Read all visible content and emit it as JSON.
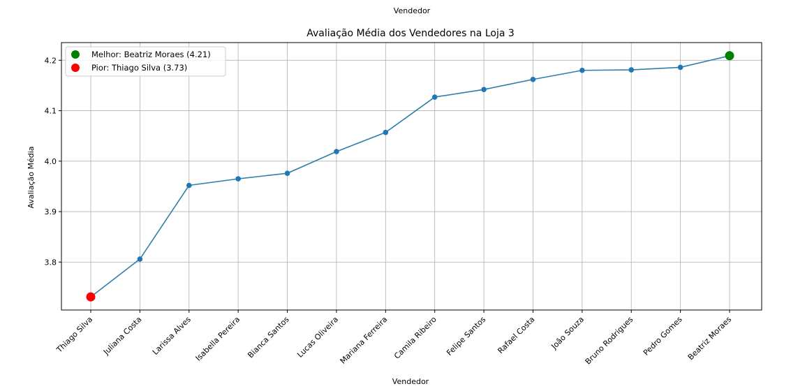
{
  "top_label": "Vendedor",
  "chart_data": {
    "type": "line",
    "title": "Avaliação Média dos Vendedores na Loja 3",
    "xlabel": "Vendedor",
    "ylabel": "Avaliação Média",
    "categories": [
      "Thiago Silva",
      "Juliana Costa",
      "Larissa Alves",
      "Isabella Pereira",
      "Bianca Santos",
      "Lucas Oliveira",
      "Mariana Ferreira",
      "Camila Ribeiro",
      "Felipe Santos",
      "Rafael Costa",
      "João Souza",
      "Bruno Rodrigues",
      "Pedro Gomes",
      "Beatriz Moraes"
    ],
    "values": [
      3.731,
      3.806,
      3.952,
      3.965,
      3.976,
      4.019,
      4.057,
      4.127,
      4.142,
      4.162,
      4.18,
      4.181,
      4.186,
      4.209
    ],
    "ylim": [
      3.705,
      4.235
    ],
    "yticks": [
      3.8,
      3.9,
      4.0,
      4.1,
      4.2
    ],
    "ytick_labels": [
      "3.8",
      "3.9",
      "4.0",
      "4.1",
      "4.2"
    ],
    "grid": true,
    "line_color": "#2f7fad",
    "marker_color": "#1f77b4",
    "legend_position": "top-left",
    "legend": [
      {
        "label": "Melhor: Beatriz Moraes (4.21)",
        "color": "#008000",
        "index": 13
      },
      {
        "label": "Pior: Thiago Silva (3.73)",
        "color": "#ff0000",
        "index": 0
      }
    ]
  }
}
